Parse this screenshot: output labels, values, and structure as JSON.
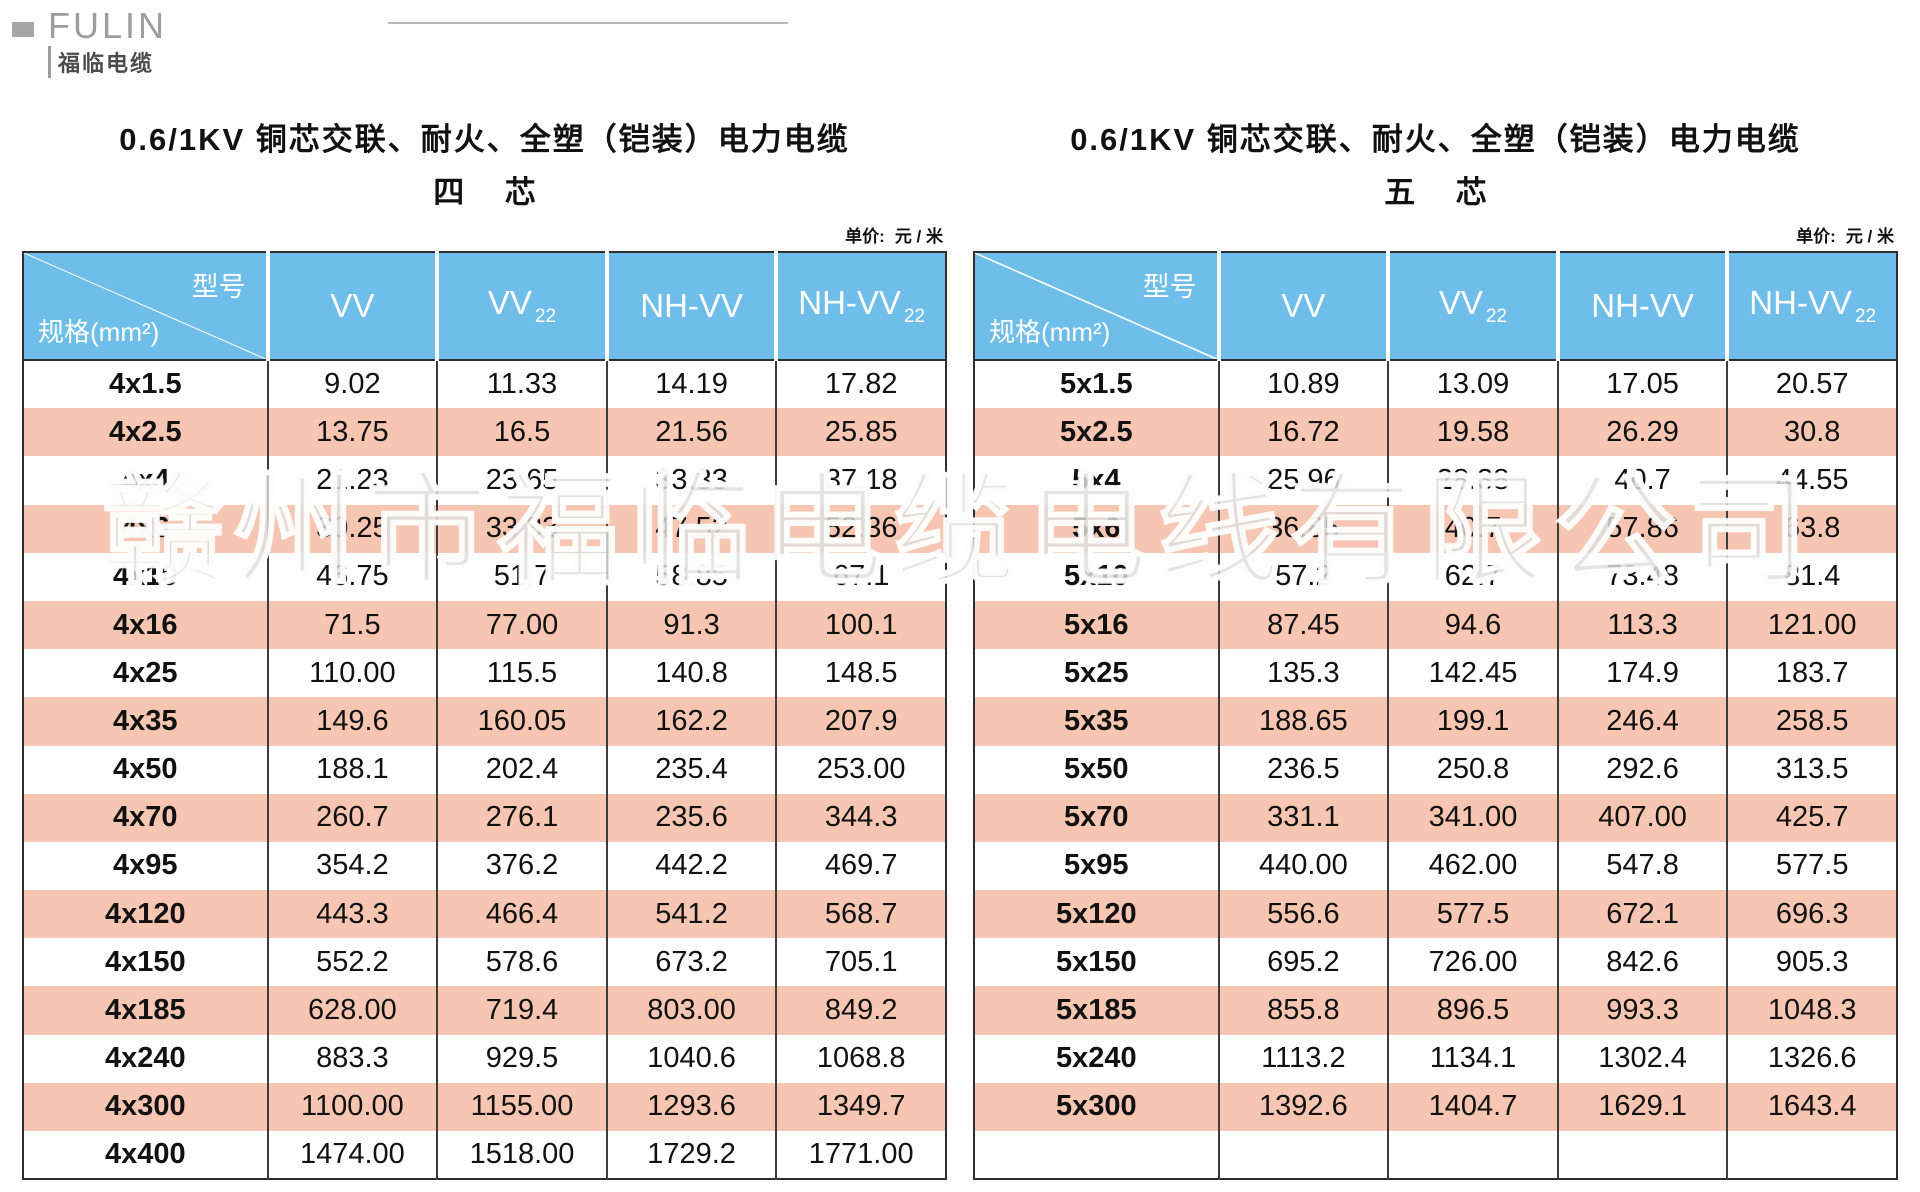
{
  "logo": {
    "brand": "FULIN",
    "brand_cn": "福临电缆"
  },
  "unit": {
    "label": "单价:",
    "value": "元 / 米"
  },
  "header": {
    "model_label": "型号",
    "spec_label": "规格(mm²)"
  },
  "watermark": "赣州市福临电缆电线有限公司",
  "tables": [
    {
      "title": "0.6/1KV 铜芯交联、耐火、全塑（铠装）电力电缆",
      "core": "四 芯",
      "columns": [
        {
          "text": "VV",
          "sub": ""
        },
        {
          "text": "VV",
          "sub": "22"
        },
        {
          "text": "NH-VV",
          "sub": ""
        },
        {
          "text": "NH-VV",
          "sub": "22"
        }
      ],
      "rows": [
        {
          "spec": "4x1.5",
          "values": [
            "9.02",
            "11.33",
            "14.19",
            "17.82"
          ]
        },
        {
          "spec": "4x2.5",
          "values": [
            "13.75",
            "16.5",
            "21.56",
            "25.85"
          ]
        },
        {
          "spec": "4x4",
          "values": [
            "21.23",
            "23.65",
            "33.33",
            "37.18"
          ]
        },
        {
          "spec": "4x6",
          "values": [
            "30.25",
            "33.33",
            "47.52",
            "52.36"
          ]
        },
        {
          "spec": "4x10",
          "values": [
            "46.75",
            "51.7",
            "58.85",
            "67.1"
          ]
        },
        {
          "spec": "4x16",
          "values": [
            "71.5",
            "77.00",
            "91.3",
            "100.1"
          ]
        },
        {
          "spec": "4x25",
          "values": [
            "110.00",
            "115.5",
            "140.8",
            "148.5"
          ]
        },
        {
          "spec": "4x35",
          "values": [
            "149.6",
            "160.05",
            "162.2",
            "207.9"
          ]
        },
        {
          "spec": "4x50",
          "values": [
            "188.1",
            "202.4",
            "235.4",
            "253.00"
          ]
        },
        {
          "spec": "4x70",
          "values": [
            "260.7",
            "276.1",
            "235.6",
            "344.3"
          ]
        },
        {
          "spec": "4x95",
          "values": [
            "354.2",
            "376.2",
            "442.2",
            "469.7"
          ]
        },
        {
          "spec": "4x120",
          "values": [
            "443.3",
            "466.4",
            "541.2",
            "568.7"
          ]
        },
        {
          "spec": "4x150",
          "values": [
            "552.2",
            "578.6",
            "673.2",
            "705.1"
          ]
        },
        {
          "spec": "4x185",
          "values": [
            "628.00",
            "719.4",
            "803.00",
            "849.2"
          ]
        },
        {
          "spec": "4x240",
          "values": [
            "883.3",
            "929.5",
            "1040.6",
            "1068.8"
          ]
        },
        {
          "spec": "4x300",
          "values": [
            "1100.00",
            "1155.00",
            "1293.6",
            "1349.7"
          ]
        },
        {
          "spec": "4x400",
          "values": [
            "1474.00",
            "1518.00",
            "1729.2",
            "1771.00"
          ]
        }
      ]
    },
    {
      "title": "0.6/1KV 铜芯交联、耐火、全塑（铠装）电力电缆",
      "core": "五 芯",
      "columns": [
        {
          "text": "VV",
          "sub": ""
        },
        {
          "text": "VV",
          "sub": "22"
        },
        {
          "text": "NH-VV",
          "sub": ""
        },
        {
          "text": "NH-VV",
          "sub": "22"
        }
      ],
      "rows": [
        {
          "spec": "5x1.5",
          "values": [
            "10.89",
            "13.09",
            "17.05",
            "20.57"
          ]
        },
        {
          "spec": "5x2.5",
          "values": [
            "16.72",
            "19.58",
            "26.29",
            "30.8"
          ]
        },
        {
          "spec": "5x4",
          "values": [
            "25.96",
            "28.38",
            "40.7",
            "44.55"
          ]
        },
        {
          "spec": "5x6",
          "values": [
            "36.85",
            "40.7",
            "57.86",
            "63.8"
          ]
        },
        {
          "spec": "5x10",
          "values": [
            "57.2",
            "62.7",
            "73.48",
            "81.4"
          ]
        },
        {
          "spec": "5x16",
          "values": [
            "87.45",
            "94.6",
            "113.3",
            "121.00"
          ]
        },
        {
          "spec": "5x25",
          "values": [
            "135.3",
            "142.45",
            "174.9",
            "183.7"
          ]
        },
        {
          "spec": "5x35",
          "values": [
            "188.65",
            "199.1",
            "246.4",
            "258.5"
          ]
        },
        {
          "spec": "5x50",
          "values": [
            "236.5",
            "250.8",
            "292.6",
            "313.5"
          ]
        },
        {
          "spec": "5x70",
          "values": [
            "331.1",
            "341.00",
            "407.00",
            "425.7"
          ]
        },
        {
          "spec": "5x95",
          "values": [
            "440.00",
            "462.00",
            "547.8",
            "577.5"
          ]
        },
        {
          "spec": "5x120",
          "values": [
            "556.6",
            "577.5",
            "672.1",
            "696.3"
          ]
        },
        {
          "spec": "5x150",
          "values": [
            "695.2",
            "726.00",
            "842.6",
            "905.3"
          ]
        },
        {
          "spec": "5x185",
          "values": [
            "855.8",
            "896.5",
            "993.3",
            "1048.3"
          ]
        },
        {
          "spec": "5x240",
          "values": [
            "1113.2",
            "1134.1",
            "1302.4",
            "1326.6"
          ]
        },
        {
          "spec": "5x300",
          "values": [
            "1392.6",
            "1404.7",
            "1629.1",
            "1643.4"
          ]
        },
        {
          "spec": "",
          "values": [
            "",
            "",
            "",
            ""
          ]
        }
      ]
    }
  ]
}
